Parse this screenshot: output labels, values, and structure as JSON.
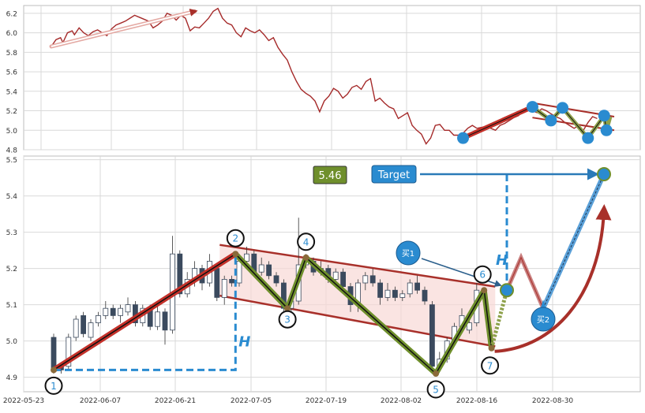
{
  "chart_data": [
    {
      "type": "line",
      "title": "",
      "xlabel": "",
      "ylabel": "",
      "ylim": [
        4.8,
        6.28
      ],
      "yticks": [
        "6.2",
        "6.0",
        "5.8",
        "5.6",
        "5.4",
        "5.2",
        "5.0",
        "4.8"
      ],
      "grid": true,
      "series": [
        {
          "color": "#a52a2a",
          "points": [
            [
              0,
              5.86
            ],
            [
              2,
              5.93
            ],
            [
              4,
              5.95
            ],
            [
              5,
              5.9
            ],
            [
              7,
              6.0
            ],
            [
              9,
              6.02
            ],
            [
              10,
              5.98
            ],
            [
              12,
              6.05
            ],
            [
              14,
              6.0
            ],
            [
              16,
              5.97
            ],
            [
              18,
              6.01
            ],
            [
              20,
              6.03
            ],
            [
              22,
              6.0
            ],
            [
              24,
              5.97
            ],
            [
              26,
              6.04
            ],
            [
              28,
              6.08
            ],
            [
              30,
              6.1
            ],
            [
              32,
              6.12
            ],
            [
              34,
              6.15
            ],
            [
              36,
              6.18
            ],
            [
              38,
              6.16
            ],
            [
              40,
              6.14
            ],
            [
              42,
              6.12
            ],
            [
              44,
              6.05
            ],
            [
              46,
              6.08
            ],
            [
              48,
              6.12
            ],
            [
              50,
              6.2
            ],
            [
              52,
              6.18
            ],
            [
              54,
              6.13
            ],
            [
              56,
              6.18
            ],
            [
              58,
              6.15
            ],
            [
              60,
              6.02
            ],
            [
              62,
              6.06
            ],
            [
              64,
              6.05
            ],
            [
              66,
              6.1
            ],
            [
              68,
              6.15
            ],
            [
              70,
              6.22
            ],
            [
              72,
              6.25
            ],
            [
              74,
              6.15
            ],
            [
              76,
              6.1
            ],
            [
              78,
              6.08
            ],
            [
              80,
              6.0
            ],
            [
              82,
              5.96
            ],
            [
              84,
              6.05
            ],
            [
              86,
              6.02
            ],
            [
              88,
              6.0
            ],
            [
              90,
              6.03
            ],
            [
              92,
              5.98
            ],
            [
              94,
              5.92
            ],
            [
              96,
              5.95
            ],
            [
              98,
              5.85
            ],
            [
              100,
              5.78
            ],
            [
              102,
              5.72
            ],
            [
              104,
              5.6
            ],
            [
              106,
              5.5
            ],
            [
              108,
              5.42
            ],
            [
              110,
              5.38
            ],
            [
              112,
              5.35
            ],
            [
              114,
              5.3
            ],
            [
              116,
              5.19
            ],
            [
              118,
              5.3
            ],
            [
              120,
              5.35
            ],
            [
              122,
              5.43
            ],
            [
              124,
              5.4
            ],
            [
              126,
              5.33
            ],
            [
              128,
              5.37
            ],
            [
              130,
              5.44
            ],
            [
              132,
              5.46
            ],
            [
              134,
              5.42
            ],
            [
              136,
              5.5
            ],
            [
              138,
              5.53
            ],
            [
              140,
              5.3
            ],
            [
              142,
              5.33
            ],
            [
              144,
              5.28
            ],
            [
              146,
              5.24
            ],
            [
              148,
              5.22
            ],
            [
              150,
              5.12
            ],
            [
              152,
              5.15
            ],
            [
              154,
              5.18
            ],
            [
              156,
              5.05
            ],
            [
              158,
              5.0
            ],
            [
              160,
              4.96
            ],
            [
              162,
              4.86
            ],
            [
              164,
              4.92
            ],
            [
              166,
              5.05
            ],
            [
              168,
              5.06
            ],
            [
              170,
              5.0
            ],
            [
              172,
              5.0
            ],
            [
              174,
              4.95
            ],
            [
              176,
              4.95
            ],
            [
              178,
              4.97
            ],
            [
              180,
              5.02
            ],
            [
              182,
              5.05
            ],
            [
              184,
              5.02
            ],
            [
              186,
              5.03
            ],
            [
              188,
              5.04
            ],
            [
              190,
              5.02
            ],
            [
              192,
              5.0
            ],
            [
              194,
              5.05
            ],
            [
              196,
              5.07
            ],
            [
              198,
              5.1
            ],
            [
              200,
              5.13
            ],
            [
              202,
              5.15
            ],
            [
              204,
              5.2
            ],
            [
              206,
              5.24
            ],
            [
              208,
              5.2
            ],
            [
              210,
              5.18
            ],
            [
              212,
              5.22
            ],
            [
              214,
              5.2
            ],
            [
              216,
              5.17
            ],
            [
              218,
              5.14
            ],
            [
              220,
              5.12
            ],
            [
              222,
              5.08
            ],
            [
              224,
              5.05
            ],
            [
              226,
              5.02
            ],
            [
              228,
              5.05
            ],
            [
              230,
              5.0
            ],
            [
              232,
              5.08
            ],
            [
              234,
              5.14
            ],
            [
              236,
              5.12
            ]
          ]
        }
      ],
      "pivots": [
        [
          178,
          4.92
        ],
        [
          208,
          5.24
        ],
        [
          216,
          5.1
        ],
        [
          221,
          5.23
        ],
        [
          232,
          4.92
        ],
        [
          239,
          5.15
        ],
        [
          240,
          5.0
        ]
      ]
    },
    {
      "type": "bar",
      "title": "",
      "xlabel": "",
      "ylabel": "",
      "ylim": [
        4.86,
        5.51
      ],
      "yticks": [
        "5.5",
        "5.4",
        "5.3",
        "5.2",
        "5.1",
        "5.0",
        "4.9"
      ],
      "x_tick_labels": [
        "2022-05-23",
        "2022-06-07",
        "2022-06-21",
        "2022-07-05",
        "2022-07-19",
        "2022-08-02",
        "2022-08-16",
        "2022-08-30"
      ],
      "grid": true,
      "candles": [
        [
          0,
          5.01,
          4.92,
          5.02,
          4.91
        ],
        [
          1,
          4.93,
          4.92,
          4.94,
          4.91
        ],
        [
          2,
          4.93,
          5.01,
          5.02,
          4.92
        ],
        [
          3,
          5.01,
          5.06,
          5.07,
          5.0
        ],
        [
          4,
          5.07,
          5.02,
          5.08,
          5.01
        ],
        [
          5,
          5.01,
          5.05,
          5.06,
          5.0
        ],
        [
          6,
          5.05,
          5.07,
          5.08,
          5.04
        ],
        [
          7,
          5.07,
          5.09,
          5.11,
          5.06
        ],
        [
          8,
          5.09,
          5.07,
          5.1,
          5.06
        ],
        [
          9,
          5.07,
          5.09,
          5.1,
          5.05
        ],
        [
          10,
          5.08,
          5.1,
          5.12,
          5.07
        ],
        [
          11,
          5.1,
          5.05,
          5.11,
          5.04
        ],
        [
          12,
          5.05,
          5.09,
          5.1,
          5.04
        ],
        [
          13,
          5.09,
          5.04,
          5.1,
          5.03
        ],
        [
          14,
          5.04,
          5.08,
          5.1,
          5.03
        ],
        [
          15,
          5.08,
          5.03,
          5.09,
          4.99
        ],
        [
          16,
          5.03,
          5.24,
          5.29,
          5.02
        ],
        [
          17,
          5.24,
          5.13,
          5.25,
          5.12
        ],
        [
          18,
          5.13,
          5.17,
          5.19,
          5.12
        ],
        [
          19,
          5.17,
          5.2,
          5.22,
          5.15
        ],
        [
          20,
          5.2,
          5.16,
          5.21,
          5.14
        ],
        [
          21,
          5.16,
          5.22,
          5.24,
          5.15
        ],
        [
          22,
          5.2,
          5.12,
          5.21,
          5.11
        ],
        [
          23,
          5.12,
          5.17,
          5.18,
          5.1
        ],
        [
          24,
          5.17,
          5.16,
          5.18,
          5.15
        ],
        [
          25,
          5.16,
          5.22,
          5.24,
          5.15
        ],
        [
          26,
          5.22,
          5.24,
          5.26,
          5.2
        ],
        [
          27,
          5.24,
          5.19,
          5.25,
          5.18
        ],
        [
          28,
          5.19,
          5.21,
          5.23,
          5.18
        ],
        [
          29,
          5.21,
          5.18,
          5.22,
          5.17
        ],
        [
          30,
          5.18,
          5.16,
          5.19,
          5.15
        ],
        [
          31,
          5.16,
          5.09,
          5.17,
          5.08
        ],
        [
          32,
          5.09,
          5.11,
          5.13,
          5.08
        ],
        [
          33,
          5.11,
          5.21,
          5.34,
          5.1
        ],
        [
          34,
          5.21,
          5.22,
          5.24,
          5.2
        ],
        [
          35,
          5.22,
          5.19,
          5.23,
          5.18
        ],
        [
          36,
          5.19,
          5.2,
          5.22,
          5.18
        ],
        [
          37,
          5.2,
          5.17,
          5.21,
          5.16
        ],
        [
          38,
          5.17,
          5.19,
          5.2,
          5.15
        ],
        [
          39,
          5.19,
          5.15,
          5.2,
          5.14
        ],
        [
          40,
          5.15,
          5.1,
          5.16,
          5.08
        ],
        [
          41,
          5.1,
          5.16,
          5.17,
          5.08
        ],
        [
          42,
          5.16,
          5.18,
          5.19,
          5.14
        ],
        [
          43,
          5.18,
          5.16,
          5.2,
          5.15
        ],
        [
          44,
          5.16,
          5.12,
          5.17,
          5.1
        ],
        [
          45,
          5.12,
          5.14,
          5.16,
          5.11
        ],
        [
          46,
          5.14,
          5.12,
          5.15,
          5.11
        ],
        [
          47,
          5.12,
          5.13,
          5.14,
          5.11
        ],
        [
          48,
          5.13,
          5.16,
          5.17,
          5.12
        ],
        [
          49,
          5.16,
          5.14,
          5.18,
          5.13
        ],
        [
          50,
          5.14,
          5.11,
          5.15,
          5.1
        ],
        [
          51,
          5.1,
          4.93,
          5.11,
          4.91
        ],
        [
          52,
          4.93,
          4.95,
          4.97,
          4.92
        ],
        [
          53,
          4.95,
          5.0,
          5.01,
          4.94
        ],
        [
          54,
          5.0,
          5.04,
          5.05,
          4.99
        ],
        [
          55,
          5.04,
          5.07,
          5.09,
          5.03
        ],
        [
          56,
          5.03,
          5.05,
          5.06,
          5.02
        ],
        [
          57,
          5.05,
          5.14,
          5.16,
          5.04
        ]
      ],
      "patterns": [
        {
          "color": "#c4312a",
          "points": [
            [
              0,
              4.92
            ],
            [
              24.5,
              5.24
            ]
          ]
        },
        {
          "color": "#6f8f2c",
          "points": [
            [
              24.5,
              5.24
            ],
            [
              31.5,
              5.09
            ],
            [
              34,
              5.23
            ],
            [
              51.5,
              4.91
            ],
            [
              58,
              5.14
            ],
            [
              59,
              4.98
            ]
          ]
        }
      ],
      "pivot_labels": [
        "1",
        "2",
        "3",
        "4",
        "5",
        "6",
        "7"
      ],
      "pivots": [
        [
          0,
          4.92
        ],
        [
          24.5,
          5.24
        ],
        [
          31.5,
          5.09
        ],
        [
          34,
          5.23
        ],
        [
          51.5,
          4.91
        ],
        [
          58,
          5.14
        ],
        [
          59,
          4.98
        ]
      ],
      "annotations": {
        "price_box": "5.46",
        "target_box": "Target",
        "height_label_1": "H",
        "height_label_2": "H",
        "buy_1": "买1",
        "buy_2": "买2"
      }
    }
  ]
}
